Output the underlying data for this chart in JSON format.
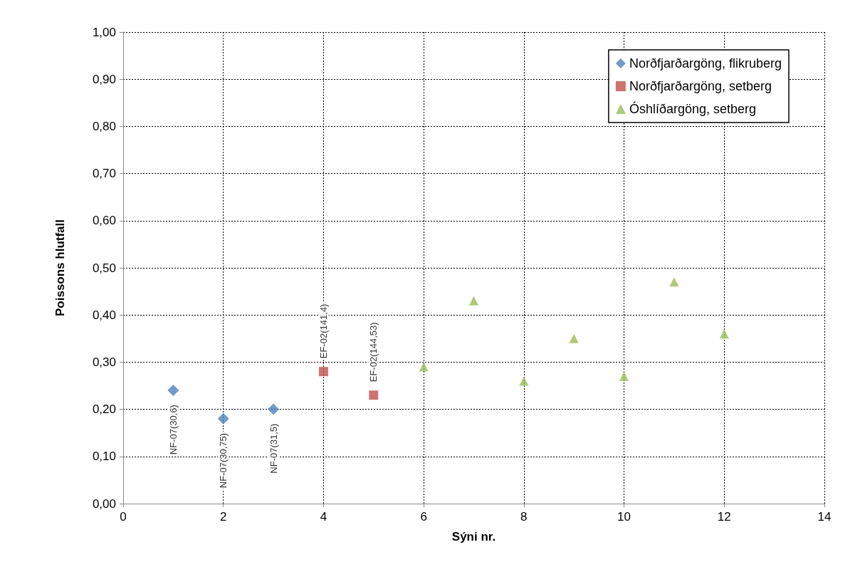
{
  "chart_data": {
    "type": "scatter",
    "xlabel": "Sýni nr.",
    "ylabel": "Poissons hlutfall",
    "xlim": [
      0,
      14
    ],
    "xticks": [
      0,
      2,
      4,
      6,
      8,
      10,
      12,
      14
    ],
    "ylim": [
      0,
      1
    ],
    "yticks": [
      {
        "value": 0,
        "label": "0,00"
      },
      {
        "value": 0.1,
        "label": "0,10"
      },
      {
        "value": 0.2,
        "label": "0,20"
      },
      {
        "value": 0.3,
        "label": "0,30"
      },
      {
        "value": 0.4,
        "label": "0,40"
      },
      {
        "value": 0.5,
        "label": "0,50"
      },
      {
        "value": 0.6,
        "label": "0,60"
      },
      {
        "value": 0.7,
        "label": "0,70"
      },
      {
        "value": 0.8,
        "label": "0,80"
      },
      {
        "value": 0.9,
        "label": "0,90"
      },
      {
        "value": 1,
        "label": "1,00"
      }
    ],
    "grid": true,
    "legend": "top right",
    "series": [
      {
        "name": "Norðfjarðargöng, flikruberg",
        "color": "#4f81bd",
        "marker": "diamond",
        "x": [
          1,
          2,
          3
        ],
        "values": [
          0.24,
          0.18,
          0.2
        ],
        "value_labels": [
          "NF-07(30,6)",
          "NF-07(30,75)",
          "NF-07(31,5)"
        ]
      },
      {
        "name": "Norðfjarðargöng, setberg",
        "color": "#c0504d",
        "marker": "square",
        "x": [
          4,
          5
        ],
        "values": [
          0.28,
          0.23
        ],
        "value_labels": [
          "EF-02(141,4)",
          "EF-02(144,53)"
        ]
      },
      {
        "name": "Óshlíðargöng, setberg",
        "color": "#9bbb59",
        "marker": "triangle",
        "x": [
          6,
          7,
          8,
          9,
          10,
          11,
          12
        ],
        "values": [
          0.29,
          0.43,
          0.26,
          0.35,
          0.27,
          0.47,
          0.36
        ]
      }
    ]
  }
}
